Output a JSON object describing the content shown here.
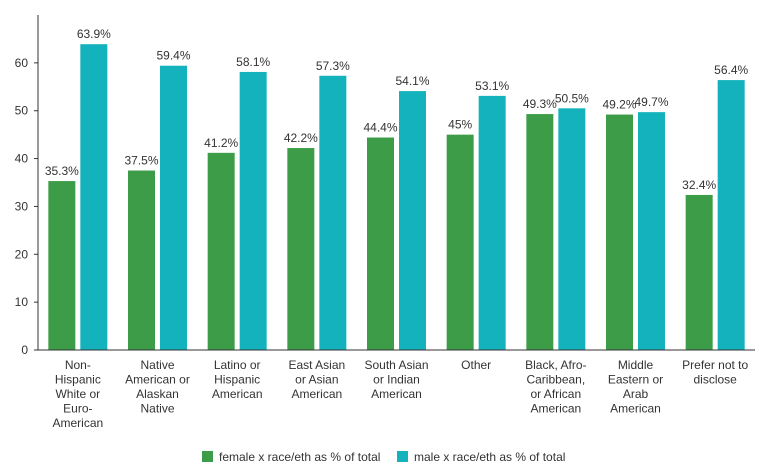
{
  "chart_data": {
    "type": "bar",
    "categories": [
      [
        "Non-",
        "Hispanic",
        "White or",
        "Euro-",
        "American"
      ],
      [
        "Native",
        "American or",
        "Alaskan",
        "Native"
      ],
      [
        "Latino or",
        "Hispanic",
        "American"
      ],
      [
        "East Asian",
        "or Asian",
        "American"
      ],
      [
        "South Asian",
        "or Indian",
        "American"
      ],
      [
        "Other"
      ],
      [
        "Black, Afro-",
        "Caribbean,",
        "or African",
        "American"
      ],
      [
        "Middle",
        "Eastern or",
        "Arab",
        "American"
      ],
      [
        "Prefer not to",
        "disclose"
      ]
    ],
    "series": [
      {
        "name": "female x race/eth as % of total",
        "color": "#3d9c47",
        "values": [
          35.3,
          37.5,
          41.2,
          42.2,
          44.4,
          45,
          49.3,
          49.2,
          32.4
        ],
        "labels": [
          "35.3%",
          "37.5%",
          "41.2%",
          "42.2%",
          "44.4%",
          "45%",
          "49.3%",
          "49.2%",
          "32.4%"
        ]
      },
      {
        "name": "male x race/eth as % of total",
        "color": "#14b2bd",
        "values": [
          63.9,
          59.4,
          58.1,
          57.3,
          54.1,
          53.1,
          50.5,
          49.7,
          56.4
        ],
        "labels": [
          "63.9%",
          "59.4%",
          "58.1%",
          "57.3%",
          "54.1%",
          "53.1%",
          "50.5%",
          "49.7%",
          "56.4%"
        ]
      }
    ],
    "title": "",
    "xlabel": "",
    "ylabel": "",
    "ylim": [
      0,
      70
    ],
    "yticks": [
      0,
      10,
      20,
      30,
      40,
      50,
      60
    ],
    "grid": false,
    "legend_position": "bottom"
  }
}
